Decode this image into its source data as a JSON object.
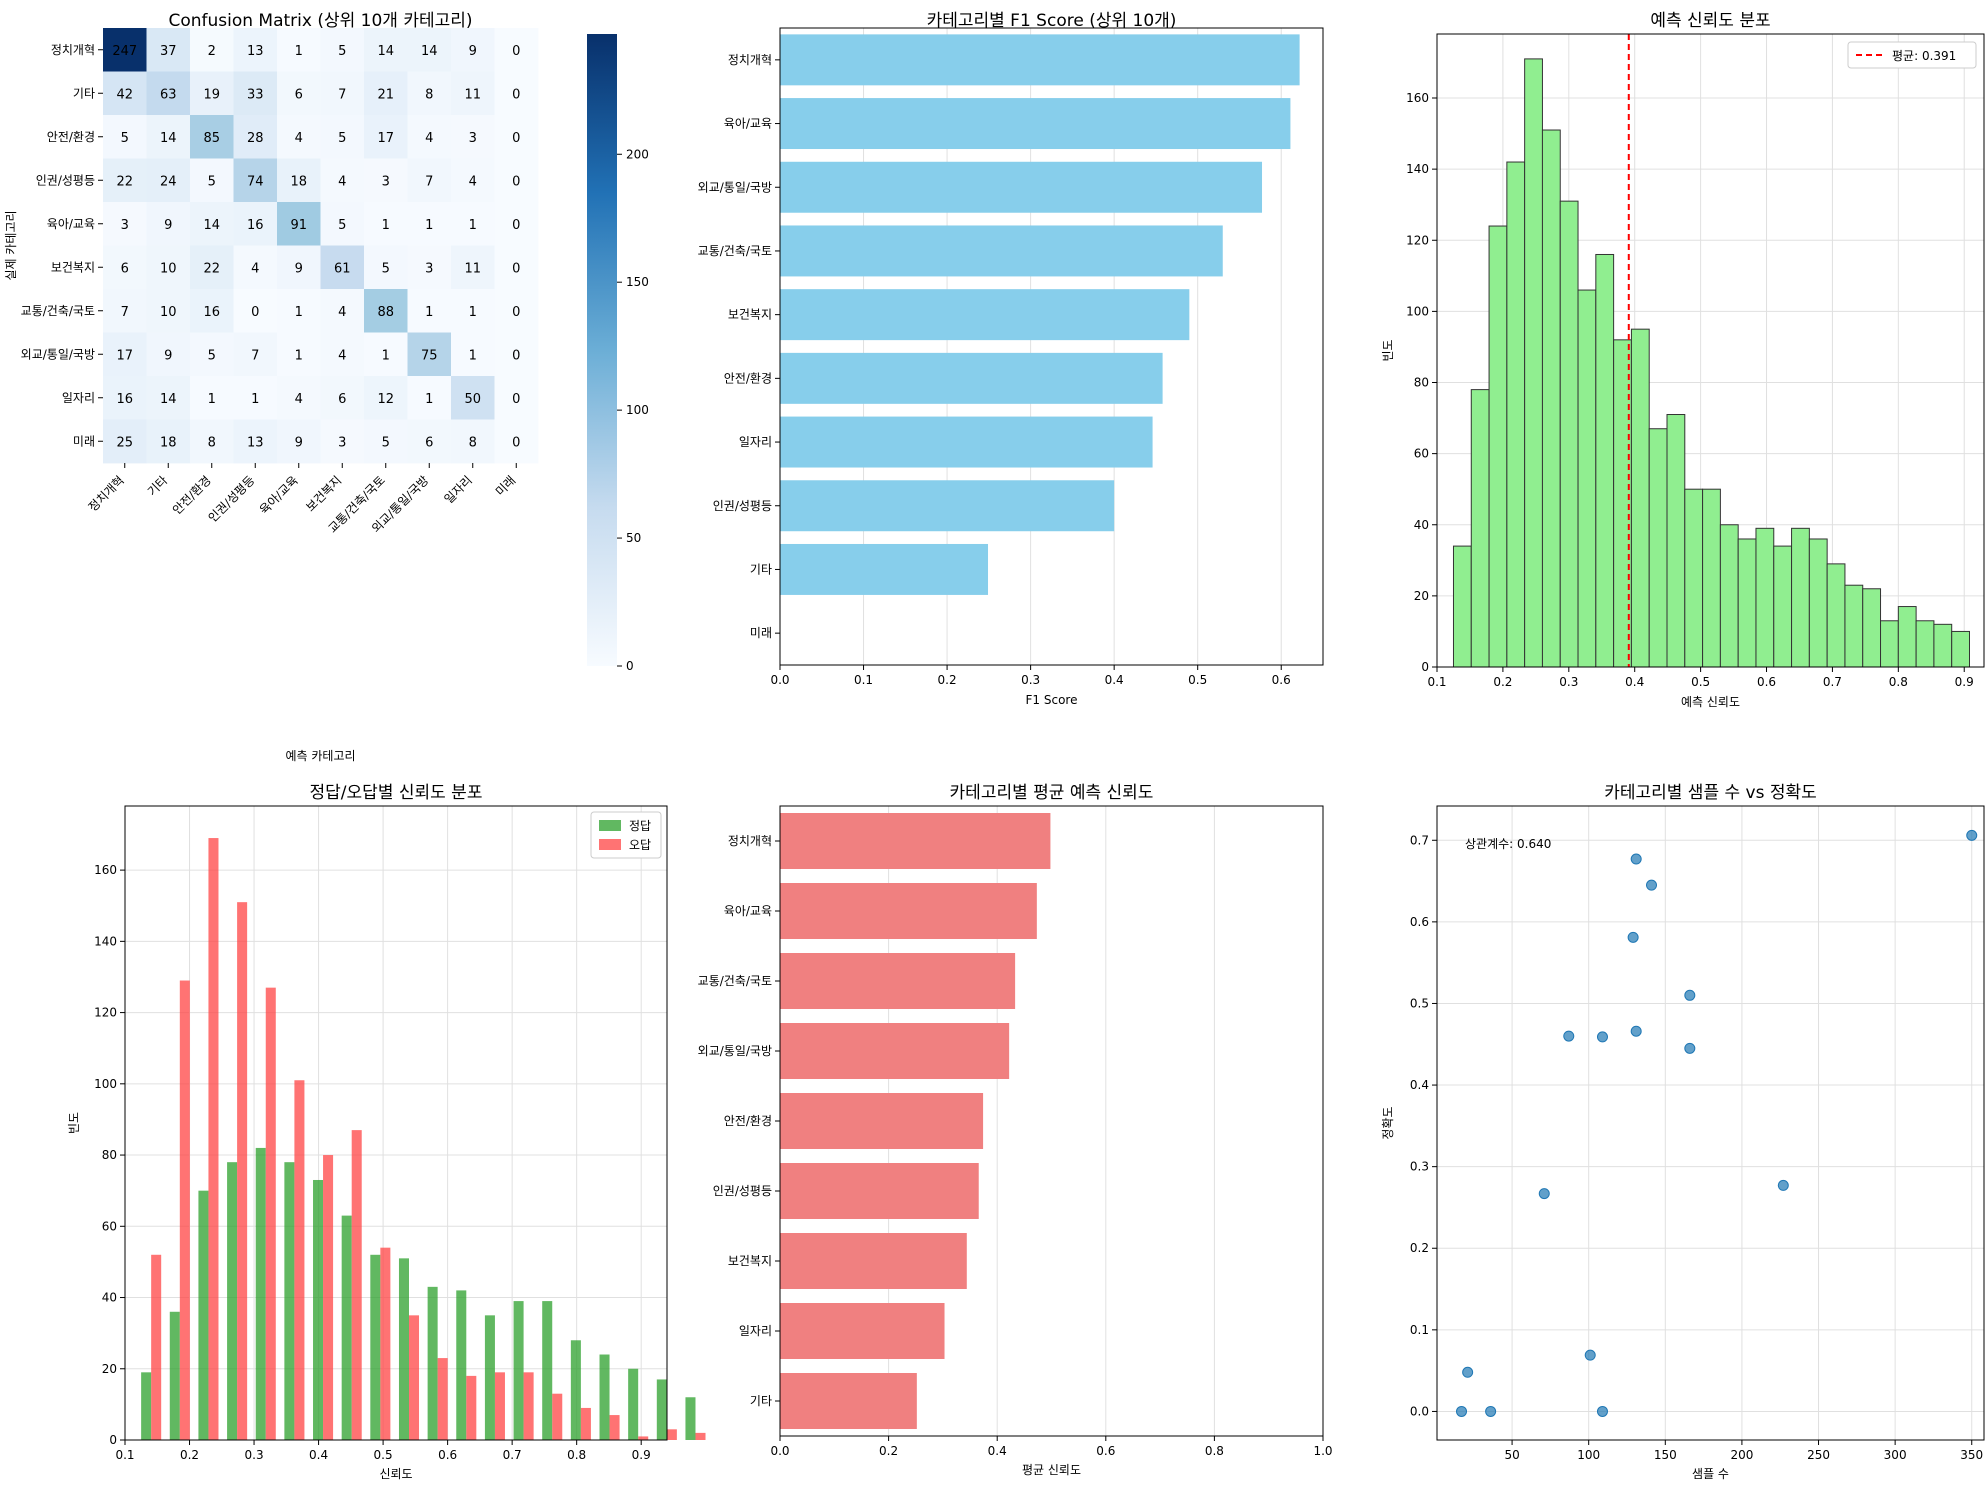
{
  "charts": [
    {
      "id": "cm",
      "type": "heatmap",
      "title": "Confusion Matrix (상위 10개 카테고리)",
      "xlabel": "예측 카테고리",
      "ylabel": "실제 카테고리",
      "categories": [
        "정치개혁",
        "기타",
        "안전/환경",
        "인권/성평등",
        "육아/교육",
        "보건복지",
        "교통/건축/국토",
        "외교/통일/국방",
        "일자리",
        "미래"
      ],
      "values": [
        [
          247,
          37,
          2,
          13,
          1,
          5,
          14,
          14,
          9,
          0
        ],
        [
          42,
          63,
          19,
          33,
          6,
          7,
          21,
          8,
          11,
          0
        ],
        [
          5,
          14,
          85,
          28,
          4,
          5,
          17,
          4,
          3,
          0
        ],
        [
          22,
          24,
          5,
          74,
          18,
          4,
          3,
          7,
          4,
          0
        ],
        [
          3,
          9,
          14,
          16,
          91,
          5,
          1,
          1,
          1,
          0
        ],
        [
          6,
          10,
          22,
          4,
          9,
          61,
          5,
          3,
          11,
          0
        ],
        [
          7,
          10,
          16,
          0,
          1,
          4,
          88,
          1,
          1,
          0
        ],
        [
          17,
          9,
          5,
          7,
          1,
          4,
          1,
          75,
          1,
          0
        ],
        [
          16,
          14,
          1,
          1,
          4,
          6,
          12,
          1,
          50,
          0
        ],
        [
          25,
          18,
          8,
          13,
          9,
          3,
          5,
          6,
          8,
          0
        ]
      ],
      "colorbar_ticks": [
        "0",
        "50",
        "100",
        "150",
        "200"
      ],
      "vmax": 247
    },
    {
      "id": "f1",
      "type": "bar",
      "orientation": "horizontal",
      "title": "카테고리별 F1 Score (상위 10개)",
      "xlabel": "F1 Score",
      "ylabel": "",
      "categories": [
        "정치개혁",
        "육아/교육",
        "외교/통일/국방",
        "교통/건축/국토",
        "보건복지",
        "안전/환경",
        "일자리",
        "인권/성평등",
        "기타",
        "미래"
      ],
      "values": [
        0.622,
        0.611,
        0.577,
        0.53,
        0.49,
        0.458,
        0.446,
        0.4,
        0.249,
        0.0
      ],
      "xlim": [
        0,
        0.65
      ],
      "xticks": [
        "0.0",
        "0.1",
        "0.2",
        "0.3",
        "0.4",
        "0.5",
        "0.6"
      ],
      "color": "#87ceeb",
      "grid": true
    },
    {
      "id": "conf",
      "type": "bar",
      "subtype": "histogram",
      "title": "예측 신뢰도 분포",
      "xlabel": "예측 신뢰도",
      "ylabel": "빈도",
      "bin_start": 0.125,
      "bin_width": 0.027,
      "counts": [
        34,
        78,
        124,
        142,
        171,
        151,
        131,
        106,
        116,
        92,
        95,
        67,
        71,
        50,
        50,
        40,
        36,
        39,
        34,
        39,
        36,
        29,
        23,
        22,
        13,
        17,
        13,
        12,
        10
      ],
      "xlim": [
        0.1,
        0.93
      ],
      "ylim": [
        0,
        178
      ],
      "xticks": [
        "0.1",
        "0.2",
        "0.3",
        "0.4",
        "0.5",
        "0.6",
        "0.7",
        "0.8",
        "0.9"
      ],
      "yticks": [
        "0",
        "20",
        "40",
        "60",
        "80",
        "100",
        "120",
        "140",
        "160"
      ],
      "mean_value": 0.391,
      "legend": [
        "평균: 0.391"
      ],
      "legend_placement": "top-right",
      "color": "#90ee90",
      "mean_color": "#ff0000",
      "grid": true
    },
    {
      "id": "cw",
      "type": "bar",
      "subtype": "grouped-histogram",
      "title": "정답/오답별 신뢰도 분포",
      "xlabel": "신뢰도",
      "ylabel": "빈도",
      "bin_start": 0.125,
      "bin_width": 0.0444,
      "series": [
        {
          "name": "정답",
          "color": "#2ca02c",
          "values": [
            19,
            36,
            70,
            78,
            82,
            78,
            73,
            63,
            52,
            51,
            43,
            42,
            35,
            39,
            39,
            28,
            24,
            20,
            17,
            12
          ]
        },
        {
          "name": "오답",
          "color": "#ff4444",
          "values": [
            52,
            129,
            169,
            151,
            127,
            101,
            80,
            87,
            54,
            35,
            23,
            18,
            19,
            19,
            13,
            9,
            7,
            1,
            3,
            2
          ]
        }
      ],
      "xlim": [
        0.1,
        0.94
      ],
      "ylim": [
        0,
        178
      ],
      "xticks": [
        "0.1",
        "0.2",
        "0.3",
        "0.4",
        "0.5",
        "0.6",
        "0.7",
        "0.8",
        "0.9"
      ],
      "yticks": [
        "0",
        "20",
        "40",
        "60",
        "80",
        "100",
        "120",
        "140",
        "160"
      ],
      "legend_placement": "top-right",
      "grid": true
    },
    {
      "id": "avg",
      "type": "bar",
      "orientation": "horizontal",
      "title": "카테고리별 평균 예측 신뢰도",
      "xlabel": "평균 신뢰도",
      "ylabel": "",
      "categories": [
        "정치개혁",
        "육아/교육",
        "교통/건축/국토",
        "외교/통일/국방",
        "안전/환경",
        "인권/성평등",
        "보건복지",
        "일자리",
        "기타"
      ],
      "values": [
        0.498,
        0.473,
        0.433,
        0.422,
        0.374,
        0.366,
        0.344,
        0.303,
        0.252
      ],
      "xlim": [
        0,
        1.0
      ],
      "xticks": [
        "0.0",
        "0.2",
        "0.4",
        "0.6",
        "0.8",
        "1.0"
      ],
      "color": "#f08080",
      "grid": true
    },
    {
      "id": "sc",
      "type": "scatter",
      "title": "카테고리별 샘플 수 vs 정확도",
      "xlabel": "샘플 수",
      "ylabel": "정확도",
      "annotation": "상관계수: 0.640",
      "points": [
        [
          350,
          0.706
        ],
        [
          131,
          0.677
        ],
        [
          141,
          0.645
        ],
        [
          129,
          0.581
        ],
        [
          166,
          0.51
        ],
        [
          87,
          0.46
        ],
        [
          109,
          0.459
        ],
        [
          131,
          0.466
        ],
        [
          166,
          0.445
        ],
        [
          71,
          0.267
        ],
        [
          227,
          0.277
        ],
        [
          101,
          0.069
        ],
        [
          21,
          0.048
        ],
        [
          17,
          0.0
        ],
        [
          36,
          0.0
        ],
        [
          109,
          0.0
        ]
      ],
      "xlim": [
        1,
        358
      ],
      "ylim": [
        -0.035,
        0.742
      ],
      "xticks": [
        "50",
        "100",
        "150",
        "200",
        "250",
        "300",
        "350"
      ],
      "yticks": [
        "0.0",
        "0.1",
        "0.2",
        "0.3",
        "0.4",
        "0.5",
        "0.6",
        "0.7"
      ],
      "color": "#1f77b4",
      "grid": true
    }
  ]
}
